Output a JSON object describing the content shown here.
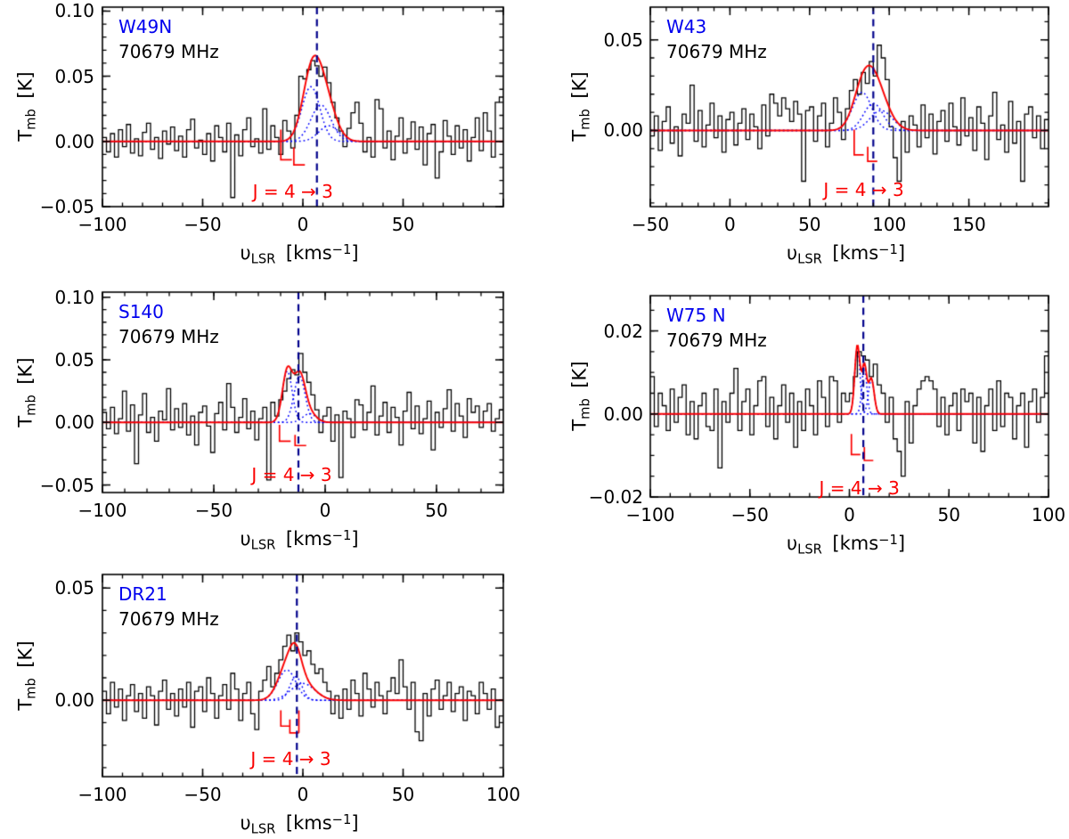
{
  "figure_bg": "#ffffff",
  "colors": {
    "source_label": "#0000ee",
    "spectrum": "#000000",
    "fit_total": "#fa0000",
    "fit_components": "#0000ff",
    "velocity_line": "#00008b",
    "hyperfine_marker": "#fa0000"
  },
  "axis_labels": {
    "x_symbol": "υ",
    "x_sub": "LSR",
    "x_unit_pre": "[kms",
    "x_unit_sup": "−1",
    "x_unit_post": "]",
    "y_symbol": "T",
    "y_sub": "mb",
    "y_unit": "[K]"
  },
  "transition_label": "J = 4 → 3",
  "chart_data": [
    {
      "type": "line",
      "source": "W49N",
      "frequency": "70679 MHz",
      "xlim": [
        -100,
        100
      ],
      "ylim": [
        -0.05,
        0.103
      ],
      "x_major": 50,
      "x_minor": 10,
      "y_major": 0.05,
      "y_minor": 0.01,
      "xtick_labels": [
        {
          "v": -100,
          "label": "−100"
        },
        {
          "v": -50,
          "label": "−50"
        },
        {
          "v": 0,
          "label": "0"
        },
        {
          "v": 50,
          "label": "50"
        }
      ],
      "ytick_labels": [
        {
          "v": -0.05,
          "label": "−0.05"
        },
        {
          "v": 0.0,
          "label": "0.00"
        },
        {
          "v": 0.05,
          "label": "0.05"
        },
        {
          "v": 0.1,
          "label": "0.10"
        }
      ],
      "v_line": 7,
      "fit_components": [
        {
          "center": 4,
          "amp": 0.042,
          "sigma": 4.5
        },
        {
          "center": 9,
          "amp": 0.028,
          "sigma": 5.0
        },
        {
          "center": 13,
          "amp": 0.012,
          "sigma": 5.0
        }
      ],
      "marker": {
        "ticks": [
          {
            "v": -11,
            "top": 0.009,
            "base": -0.014,
            "foot": 5.5
          },
          {
            "v": -4.5,
            "top": -0.0045,
            "base": -0.018,
            "foot": 5.5
          }
        ],
        "label_v": -5,
        "label_y": -0.03
      },
      "spectrum": {
        "x0": -100,
        "dx": 2,
        "scale": 0.001,
        "unit": "K",
        "values": [
          3,
          -8,
          6,
          -12,
          9,
          -4,
          13,
          -9,
          2,
          -11,
          7,
          14,
          -6,
          3,
          -13,
          8,
          -2,
          11,
          -7,
          4,
          -12,
          9,
          17,
          -5,
          1,
          -10,
          6,
          -15,
          12,
          3,
          -8,
          14,
          -43,
          5,
          -11,
          9,
          18,
          -4,
          2,
          -9,
          25,
          -6,
          12,
          3,
          -10,
          16,
          8,
          -5,
          20,
          50,
          48,
          55,
          62,
          58,
          50,
          57,
          45,
          30,
          18,
          8,
          -4,
          10,
          22,
          30,
          14,
          -8,
          3,
          -12,
          32,
          25,
          -5,
          8,
          -14,
          4,
          18,
          -9,
          2,
          15,
          -6,
          11,
          -18,
          6,
          13,
          -28,
          -8,
          16,
          4,
          -10,
          12,
          -5,
          9,
          -15,
          3,
          18,
          -7,
          22,
          8,
          -12,
          30,
          34
        ]
      }
    },
    {
      "type": "line",
      "source": "W43",
      "frequency": "70679 MHz",
      "xlim": [
        -50,
        200
      ],
      "ylim": [
        -0.042,
        0.068
      ],
      "x_major": 50,
      "x_minor": 10,
      "y_major": 0.05,
      "y_minor": 0.01,
      "xtick_labels": [
        {
          "v": -50,
          "label": "−50"
        },
        {
          "v": 0,
          "label": "0"
        },
        {
          "v": 50,
          "label": "50"
        },
        {
          "v": 100,
          "label": "100"
        },
        {
          "v": 150,
          "label": "150"
        }
      ],
      "ytick_labels": [
        {
          "v": 0.0,
          "label": "0.00"
        },
        {
          "v": 0.05,
          "label": "0.05"
        }
      ],
      "v_line": 90,
      "fit_components": [
        {
          "center": 83,
          "amp": 0.021,
          "sigma": 6.0
        },
        {
          "center": 90,
          "amp": 0.015,
          "sigma": 6.0
        },
        {
          "center": 95,
          "amp": 0.011,
          "sigma": 7.0
        }
      ],
      "marker": {
        "ticks": [
          {
            "v": 78,
            "top": 0.0005,
            "base": -0.0135,
            "foot": 6
          },
          {
            "v": 86.5,
            "top": -0.009,
            "base": -0.017,
            "foot": 6
          }
        ],
        "label_v": 84,
        "label_y": -0.027
      },
      "spectrum": {
        "x0": -50,
        "dx": 2.5,
        "scale": 0.001,
        "unit": "K",
        "values": [
          -3,
          8,
          -11,
          5,
          13,
          -7,
          2,
          -14,
          9,
          4,
          25,
          -6,
          11,
          -9,
          3,
          15,
          -4,
          8,
          -12,
          6,
          10,
          -8,
          4,
          12,
          -5,
          9,
          2,
          -10,
          14,
          -3,
          20,
          15,
          8,
          18,
          12,
          5,
          16,
          9,
          -28,
          11,
          13,
          -6,
          8,
          15,
          -9,
          4,
          18,
          10,
          -5,
          12,
          22,
          28,
          20,
          32,
          26,
          38,
          30,
          47,
          40,
          28,
          2,
          -15,
          -28,
          5,
          -12,
          8,
          3,
          -9,
          14,
          -4,
          9,
          -13,
          5,
          11,
          -6,
          15,
          2,
          -8,
          18,
          -3,
          7,
          -11,
          13,
          4,
          -16,
          8,
          21,
          -5,
          3,
          -12,
          16,
          -7,
          5,
          -28,
          9,
          13,
          -4,
          8,
          -10,
          6
        ]
      }
    },
    {
      "type": "line",
      "source": "S140",
      "frequency": "70679 MHz",
      "xlim": [
        -100,
        80
      ],
      "ylim": [
        -0.056,
        0.104
      ],
      "x_major": 50,
      "x_minor": 10,
      "y_major": 0.05,
      "y_minor": 0.01,
      "xtick_labels": [
        {
          "v": -100,
          "label": "−100"
        },
        {
          "v": -50,
          "label": "−50"
        },
        {
          "v": 0,
          "label": "0"
        },
        {
          "v": 50,
          "label": "50"
        }
      ],
      "ytick_labels": [
        {
          "v": -0.05,
          "label": "−0.05"
        },
        {
          "v": 0.0,
          "label": "0.00"
        },
        {
          "v": 0.05,
          "label": "0.05"
        },
        {
          "v": 0.1,
          "label": "0.10"
        }
      ],
      "v_line": -12,
      "fit_components": [
        {
          "center": -17,
          "amp": 0.041,
          "sigma": 2.2
        },
        {
          "center": -11.5,
          "amp": 0.037,
          "sigma": 2.5
        },
        {
          "center": -7,
          "amp": 0.007,
          "sigma": 3.0
        }
      ],
      "marker": {
        "ticks": [
          {
            "v": -20.5,
            "top": -0.002,
            "base": -0.015,
            "foot": 5
          },
          {
            "v": -13.5,
            "top": -0.01,
            "base": -0.0185,
            "foot": 5
          }
        ],
        "label_v": -15,
        "label_y": -0.033
      },
      "spectrum": {
        "x0": -100,
        "dx": 1.8,
        "scale": 0.001,
        "unit": "K",
        "values": [
          8,
          -5,
          12,
          -9,
          3,
          25,
          -7,
          14,
          -33,
          6,
          23,
          -8,
          4,
          -15,
          9,
          2,
          27,
          -6,
          11,
          -4,
          15,
          -10,
          5,
          -18,
          8,
          13,
          -3,
          -24,
          7,
          16,
          -6,
          31,
          12,
          -8,
          4,
          19,
          -5,
          9,
          -14,
          3,
          12,
          -46,
          16,
          5,
          18,
          25,
          35,
          42,
          38,
          55,
          40,
          32,
          22,
          10,
          -8,
          5,
          12,
          -15,
          6,
          -44,
          9,
          3,
          -12,
          18,
          14,
          -6,
          8,
          29,
          -10,
          5,
          16,
          -8,
          12,
          4,
          -18,
          9,
          24,
          -5,
          13,
          -9,
          3,
          17,
          -22,
          8,
          -4,
          11,
          26,
          -7,
          15,
          5,
          -12,
          19,
          8,
          13,
          -4,
          9,
          15,
          -7,
          3,
          10
        ]
      }
    },
    {
      "type": "line",
      "source": "W75 N",
      "frequency": "70679 MHz",
      "xlim": [
        -100,
        100
      ],
      "ylim": [
        -0.02,
        0.0285
      ],
      "x_major": 50,
      "x_minor": 10,
      "y_major": 0.02,
      "y_minor": 0.005,
      "xtick_labels": [
        {
          "v": -100,
          "label": "−100"
        },
        {
          "v": -50,
          "label": "−50"
        },
        {
          "v": 0,
          "label": "0"
        },
        {
          "v": 50,
          "label": "50"
        },
        {
          "v": 100,
          "label": "100"
        }
      ],
      "ytick_labels": [
        {
          "v": -0.02,
          "label": "−0.02"
        },
        {
          "v": 0.0,
          "label": "0.00"
        },
        {
          "v": 0.02,
          "label": "0.02"
        }
      ],
      "v_line": 7,
      "fit_components": [
        {
          "center": 4,
          "amp": 0.0165,
          "sigma": 1.3
        },
        {
          "center": 7.5,
          "amp": 0.0115,
          "sigma": 1.2
        },
        {
          "center": 11,
          "amp": 0.0085,
          "sigma": 1.4
        }
      ],
      "marker": {
        "ticks": [
          {
            "v": 1,
            "top": -0.0048,
            "base": -0.0098,
            "foot": 4.5
          },
          {
            "v": 7.5,
            "top": -0.008,
            "base": -0.0112,
            "foot": 4.5
          }
        ],
        "label_v": 5,
        "label_y": -0.0152
      },
      "spectrum": {
        "x0": -100,
        "dx": 2,
        "scale": 0.001,
        "unit": "K",
        "values": [
          9,
          -3,
          5,
          2,
          -4,
          6,
          -2,
          4,
          7,
          -5,
          3,
          -6,
          2,
          5,
          -3,
          -4,
          6,
          -13,
          3,
          -2,
          5,
          11,
          -4,
          3,
          6,
          -5,
          2,
          8,
          9,
          -3,
          4,
          -6,
          2,
          7,
          -2,
          5,
          -8,
          3,
          -4,
          6,
          2,
          -5,
          8,
          4,
          -3,
          9,
          8,
          -2,
          5,
          3,
          5,
          9,
          15,
          14,
          13,
          9,
          12,
          7,
          5,
          -2,
          4,
          -6,
          -9,
          -15,
          3,
          -7,
          2,
          6,
          8,
          9,
          8,
          6,
          -3,
          4,
          -5,
          2,
          5,
          -4,
          6,
          3,
          5,
          -7,
          4,
          -9,
          2,
          6,
          -4,
          8,
          -3,
          5,
          4,
          -6,
          2,
          5,
          -8,
          3,
          6,
          -2,
          4,
          14
        ]
      }
    },
    {
      "type": "line",
      "source": "DR21",
      "frequency": "70679 MHz",
      "xlim": [
        -100,
        100
      ],
      "ylim": [
        -0.034,
        0.056
      ],
      "x_major": 50,
      "x_minor": 10,
      "y_major": 0.05,
      "y_minor": 0.01,
      "xtick_labels": [
        {
          "v": -100,
          "label": "−100"
        },
        {
          "v": -50,
          "label": "−50"
        },
        {
          "v": 0,
          "label": "0"
        },
        {
          "v": 50,
          "label": "50"
        },
        {
          "v": 100,
          "label": "100"
        }
      ],
      "ytick_labels": [
        {
          "v": 0.0,
          "label": "0.00"
        },
        {
          "v": 0.05,
          "label": "0.05"
        }
      ],
      "v_line": -3,
      "fit_components": [
        {
          "center": -8,
          "amp": 0.0135,
          "sigma": 4.5
        },
        {
          "center": -3.5,
          "amp": 0.0105,
          "sigma": 3.0
        },
        {
          "center": 0,
          "amp": 0.0075,
          "sigma": 6.0
        }
      ],
      "marker": {
        "ticks": [
          {
            "v": -11,
            "top": -0.0045,
            "base": -0.0115,
            "foot": 4.5
          },
          {
            "v": -6.5,
            "top": -0.0085,
            "base": -0.0145,
            "foot": 4.5
          },
          {
            "v": -2,
            "top": -0.0045,
            "base": -0.0145,
            "foot": 0
          }
        ],
        "label_v": -6,
        "label_y": -0.0215
      },
      "spectrum": {
        "x0": -100,
        "dx": 2,
        "scale": 0.001,
        "unit": "K",
        "values": [
          4,
          -6,
          8,
          -3,
          5,
          -9,
          2,
          7,
          -5,
          3,
          -8,
          6,
          2,
          -11,
          4,
          9,
          -4,
          3,
          -7,
          5,
          -3,
          8,
          -12,
          4,
          6,
          -5,
          10,
          3,
          -8,
          2,
          7,
          -4,
          12,
          5,
          -9,
          3,
          8,
          -6,
          -13,
          4,
          9,
          15,
          6,
          12,
          18,
          24,
          29,
          22,
          30,
          26,
          20,
          22,
          16,
          12,
          14,
          8,
          4,
          -6,
          2,
          -8,
          5,
          -4,
          9,
          3,
          -7,
          12,
          5,
          -3,
          8,
          2,
          -6,
          4,
          10,
          3,
          18,
          6,
          -4,
          8,
          -14,
          -18,
          3,
          -7,
          5,
          9,
          -4,
          2,
          8,
          -5,
          3,
          6,
          -9,
          4,
          2,
          -6,
          8,
          3,
          -4,
          5,
          -12,
          -7
        ]
      }
    }
  ]
}
